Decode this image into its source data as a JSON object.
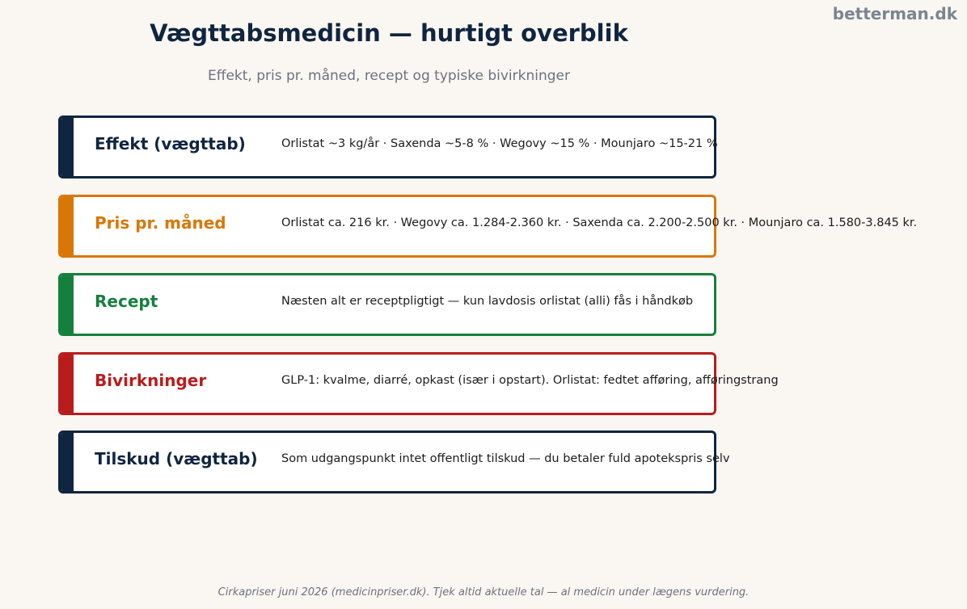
{
  "brand": "betterman.dk",
  "title": "Vægttabsmedicin — hurtigt overblik",
  "subtitle": "Effekt, pris pr. måned, recept og typiske bivirkninger",
  "colors": {
    "navy": "#0f2540",
    "orange": "#d97706",
    "green": "#15803d",
    "red": "#b91c1c"
  },
  "cards": [
    {
      "label": "Effekt (vægttab)",
      "desc": "Orlistat ~3 kg/år · Saxenda ~5-8 % · Wegovy ~15 % · Mounjaro ~15-21 %",
      "color": "#0f2540"
    },
    {
      "label": "Pris pr. måned",
      "desc": "Orlistat ca. 216 kr. · Wegovy ca. 1.284-2.360 kr. · Saxenda ca. 2.200-2.500 kr. · Mounjaro ca. 1.580-3.845 kr.",
      "color": "#d97706"
    },
    {
      "label": "Recept",
      "desc": "Næsten alt er receptpligtigt — kun lavdosis orlistat (alli) fås i håndkøb",
      "color": "#15803d"
    },
    {
      "label": "Bivirkninger",
      "desc": "GLP-1: kvalme, diarré, opkast (især i opstart). Orlistat: fedtet afføring, afføringstrang",
      "color": "#b91c1c"
    },
    {
      "label": "Tilskud (vægttab)",
      "desc": "Som udgangspunkt intet offentligt tilskud — du betaler fuld apotekspris selv",
      "color": "#0f2540"
    }
  ],
  "footer": "Cirkapriser juni 2026 (medicinpriser.dk). Tjek altid aktuelle tal — al medicin under lægens vurdering."
}
